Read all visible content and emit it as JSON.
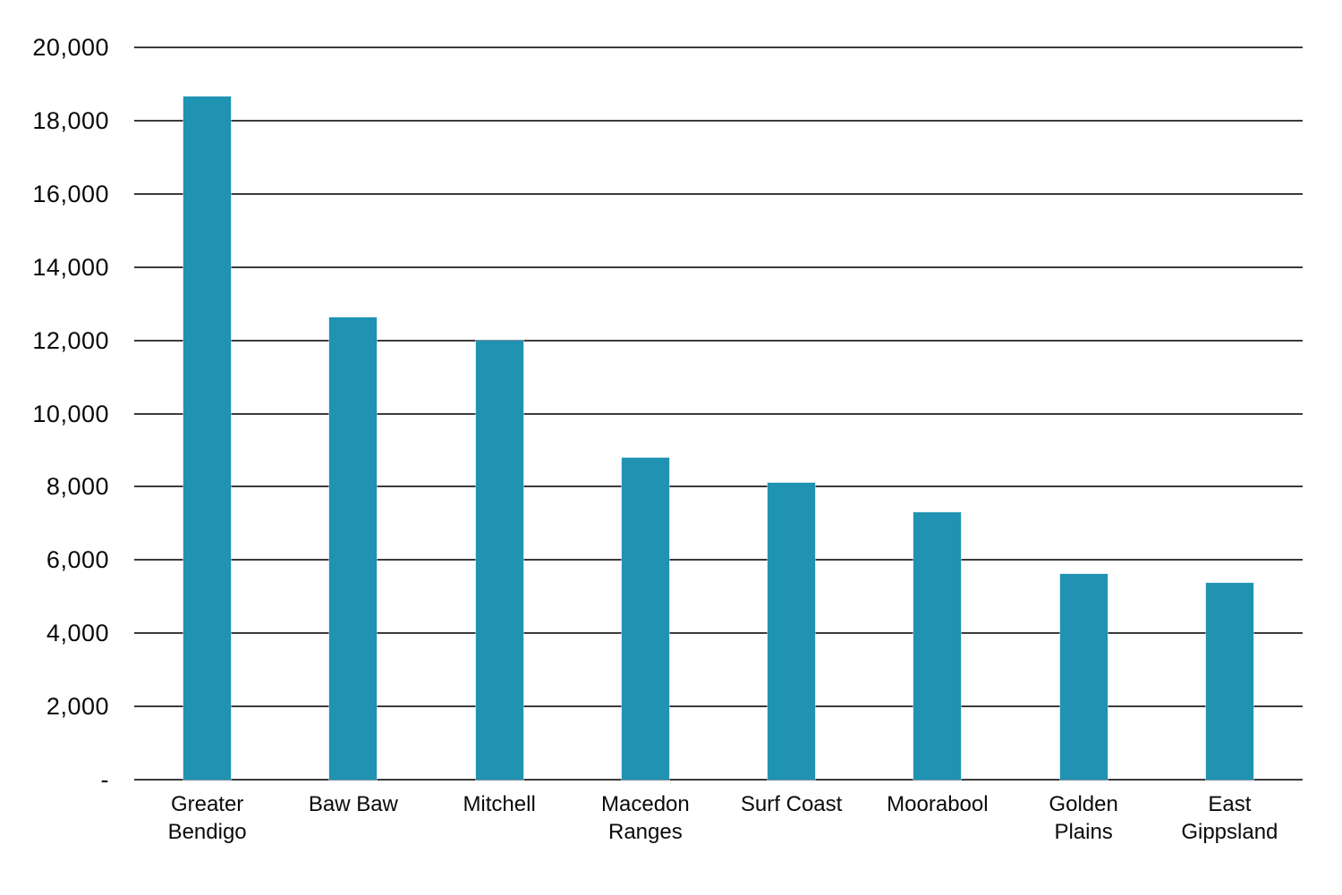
{
  "page": {
    "background_color": "#ffffff",
    "text_color": "#0a0a0a"
  },
  "chart_data": {
    "type": "bar",
    "title": "",
    "xlabel": "",
    "ylabel": "",
    "categories": [
      "Greater Bendigo",
      "Baw Baw",
      "Mitchell",
      "Macedon Ranges",
      "Surf Coast",
      "Moorabool",
      "Golden Plains",
      "East Gippsland"
    ],
    "category_label_lines": [
      [
        "Greater",
        "Bendigo"
      ],
      [
        "Baw Baw"
      ],
      [
        "Mitchell"
      ],
      [
        "Macedon",
        "Ranges"
      ],
      [
        "Surf Coast"
      ],
      [
        "Moorabool"
      ],
      [
        "Golden",
        "Plains"
      ],
      [
        "East",
        "Gippsland"
      ]
    ],
    "values": [
      18650,
      12620,
      12000,
      8780,
      8120,
      7300,
      5610,
      5370
    ],
    "ylim": [
      0,
      20000
    ],
    "ytick_step": 2000,
    "ytick_labels": [
      "-",
      "2,000",
      "4,000",
      "6,000",
      "8,000",
      "10,000",
      "12,000",
      "14,000",
      "16,000",
      "18,000",
      "20,000"
    ],
    "grid": "horizontal",
    "legend": "none",
    "bar_color": "#2092b2",
    "gridline_color": "#3b3b3b"
  }
}
